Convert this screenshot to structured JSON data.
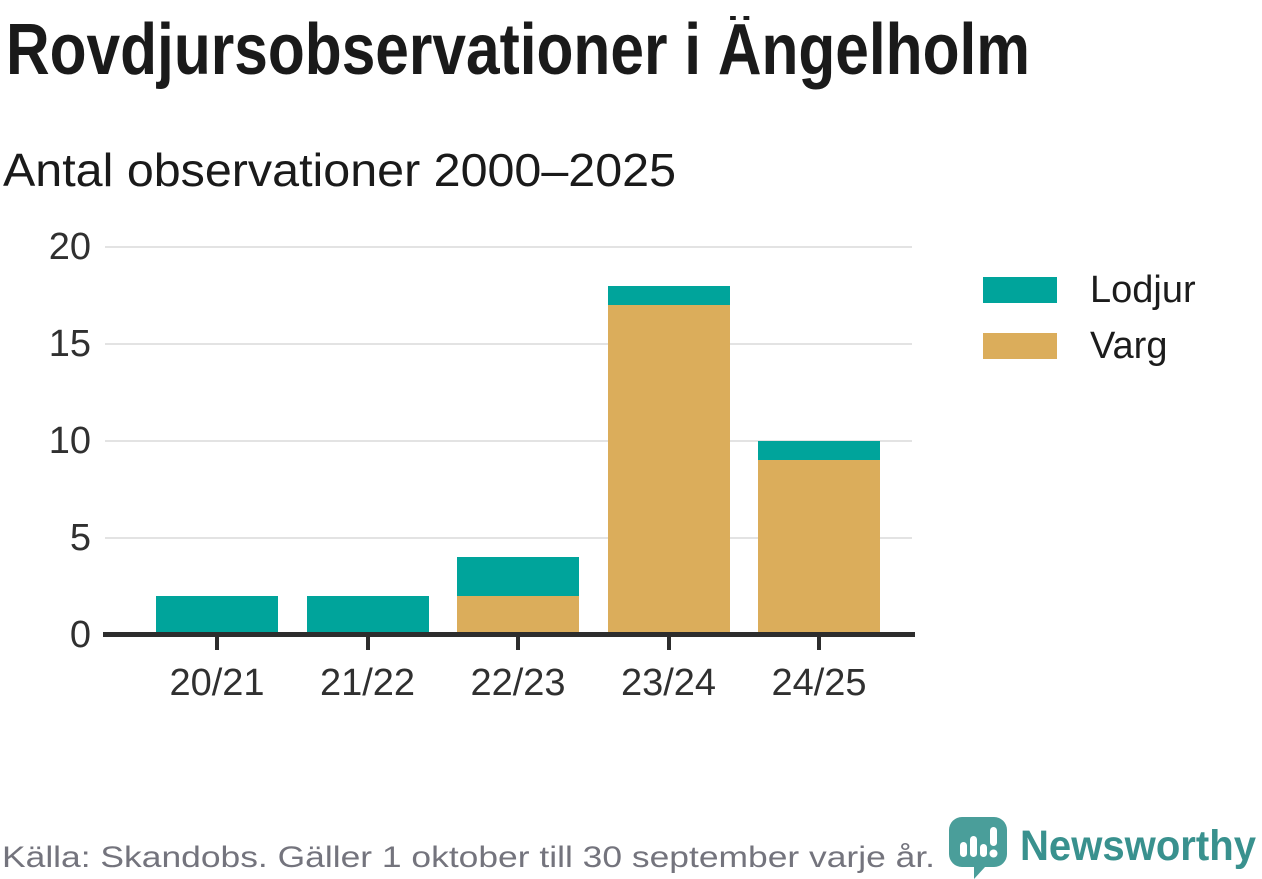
{
  "header": {
    "title": "Rovdjursobservationer i Ängelholm",
    "subtitle": "Antal observationer 2000–2025"
  },
  "chart_data": {
    "type": "bar",
    "stacked": true,
    "title": "Rovdjursobservationer i Ängelholm",
    "subtitle": "Antal observationer 2000–2025",
    "categories": [
      "20/21",
      "21/22",
      "22/23",
      "23/24",
      "24/25"
    ],
    "series": [
      {
        "name": "Lodjur",
        "color": "#00a49b",
        "values": [
          2,
          2,
          2,
          1,
          1
        ]
      },
      {
        "name": "Varg",
        "color": "#dbad5b",
        "values": [
          0,
          0,
          2,
          17,
          9
        ]
      }
    ],
    "totals": [
      2,
      2,
      4,
      18,
      10
    ],
    "xlabel": "",
    "ylabel": "",
    "ylim": [
      0,
      20
    ],
    "yticks": [
      0,
      5,
      10,
      15,
      20
    ],
    "grid": true,
    "legend_position": "right",
    "grid_color": "#e3e3e3",
    "axis_color": "#2d2d2d",
    "text_color": "#303030"
  },
  "footer": {
    "source": "Källa: Skandobs. Gäller 1 oktober till 30 september varje år.",
    "brand": "Newsworthy"
  },
  "brand": {
    "logo_icon": "bar-chart-speech-bubble-icon",
    "logo_color": "#4a9e9a",
    "wordmark_color": "#39918e",
    "source_text_color": "#74747d"
  }
}
